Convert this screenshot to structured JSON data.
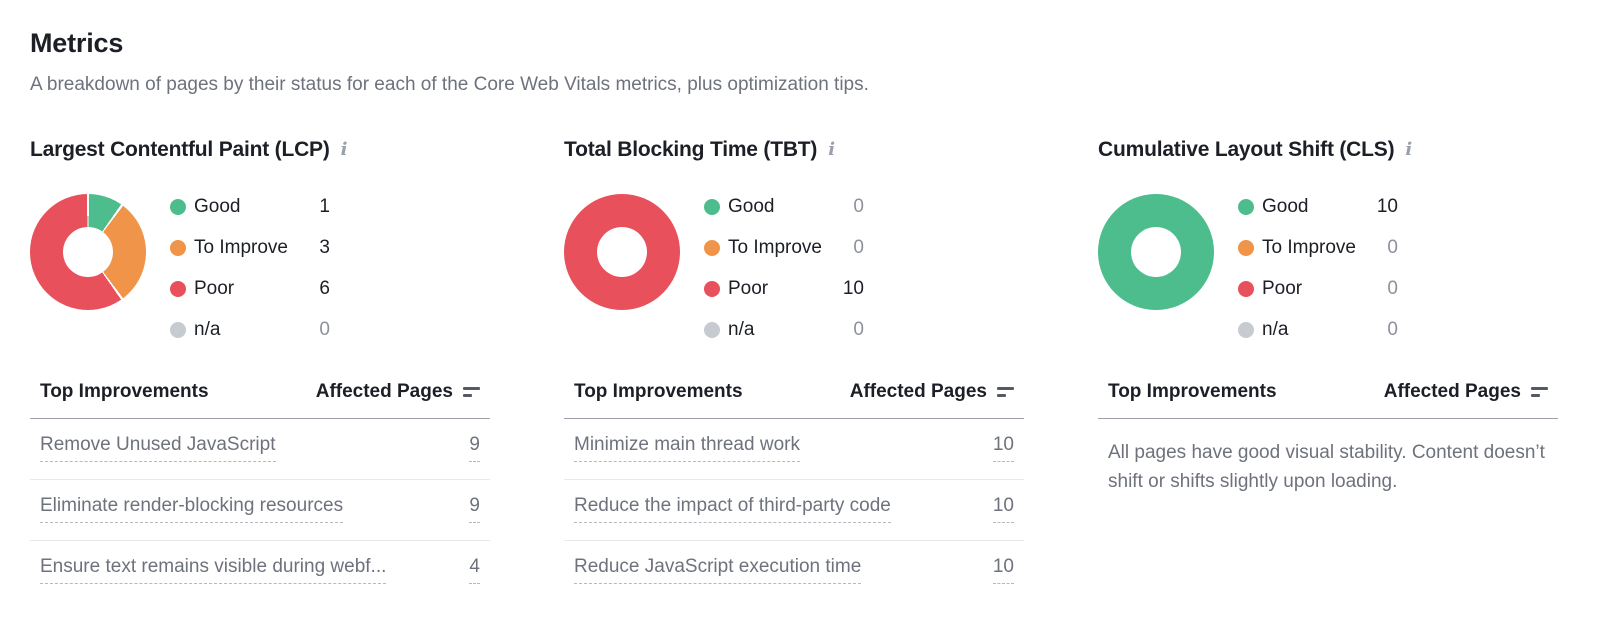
{
  "page": {
    "title": "Metrics",
    "subtitle": "A breakdown of pages by their status for each of the Core Web Vitals metrics, plus optimization tips."
  },
  "ui": {
    "info_glyph": "i"
  },
  "colors": {
    "good": "#4dbd8d",
    "to_improve": "#ef9448",
    "poor": "#e8515c",
    "na": "#c6cad1"
  },
  "table": {
    "improvements_header": "Top Improvements",
    "affected_pages_header": "Affected Pages"
  },
  "metrics": [
    {
      "title": "Largest Contentful Paint (LCP)",
      "legend": [
        {
          "key": "good",
          "label": "Good",
          "value": "1"
        },
        {
          "key": "to_improve",
          "label": "To Improve",
          "value": "3"
        },
        {
          "key": "poor",
          "label": "Poor",
          "value": "6"
        },
        {
          "key": "na",
          "label": "n/a",
          "value": "0"
        }
      ],
      "improvements": [
        {
          "label": "Remove Unused JavaScript",
          "pages": "9"
        },
        {
          "label": "Eliminate render-blocking resources",
          "pages": "9"
        },
        {
          "label": "Ensure text remains visible during webf...",
          "pages": "4"
        }
      ]
    },
    {
      "title": "Total Blocking Time (TBT)",
      "legend": [
        {
          "key": "good",
          "label": "Good",
          "value": "0"
        },
        {
          "key": "to_improve",
          "label": "To Improve",
          "value": "0"
        },
        {
          "key": "poor",
          "label": "Poor",
          "value": "10"
        },
        {
          "key": "na",
          "label": "n/a",
          "value": "0"
        }
      ],
      "improvements": [
        {
          "label": "Minimize main thread work",
          "pages": "10"
        },
        {
          "label": "Reduce the impact of third-party code",
          "pages": "10"
        },
        {
          "label": "Reduce JavaScript execution time",
          "pages": "10"
        }
      ]
    },
    {
      "title": "Cumulative Layout Shift (CLS)",
      "legend": [
        {
          "key": "good",
          "label": "Good",
          "value": "10"
        },
        {
          "key": "to_improve",
          "label": "To Improve",
          "value": "0"
        },
        {
          "key": "poor",
          "label": "Poor",
          "value": "0"
        },
        {
          "key": "na",
          "label": "n/a",
          "value": "0"
        }
      ],
      "improvements": [],
      "note": "All pages have good visual stability. Content doesn’t shift or shifts slightly upon loading."
    }
  ],
  "chart_data": [
    {
      "type": "pie",
      "style": "donut",
      "title": "Largest Contentful Paint (LCP)",
      "labels": [
        "Good",
        "To Improve",
        "Poor",
        "n/a"
      ],
      "values": [
        1,
        3,
        6,
        0
      ],
      "colors": [
        "#4dbd8d",
        "#ef9448",
        "#e8515c",
        "#c6cad1"
      ],
      "legend_position": "right"
    },
    {
      "type": "pie",
      "style": "donut",
      "title": "Total Blocking Time (TBT)",
      "labels": [
        "Good",
        "To Improve",
        "Poor",
        "n/a"
      ],
      "values": [
        0,
        0,
        10,
        0
      ],
      "colors": [
        "#4dbd8d",
        "#ef9448",
        "#e8515c",
        "#c6cad1"
      ],
      "legend_position": "right"
    },
    {
      "type": "pie",
      "style": "donut",
      "title": "Cumulative Layout Shift (CLS)",
      "labels": [
        "Good",
        "To Improve",
        "Poor",
        "n/a"
      ],
      "values": [
        10,
        0,
        0,
        0
      ],
      "colors": [
        "#4dbd8d",
        "#ef9448",
        "#e8515c",
        "#c6cad1"
      ],
      "legend_position": "right"
    }
  ]
}
